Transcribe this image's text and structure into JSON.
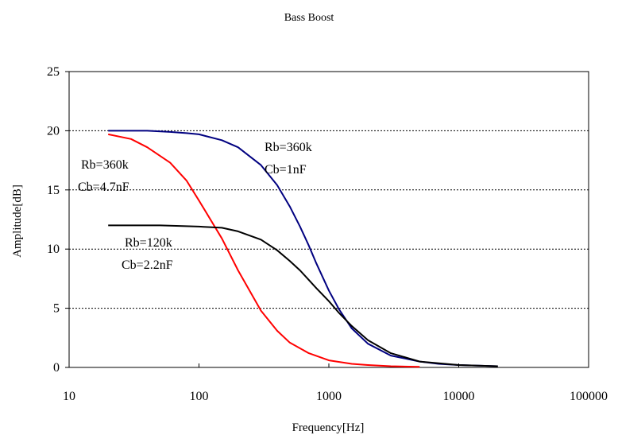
{
  "chart_data": {
    "type": "line",
    "title": "Bass Boost",
    "xlabel": "Frequency[Hz]",
    "ylabel": "Amplitude[dB]",
    "xscale": "log",
    "xlim": [
      10,
      100000
    ],
    "ylim": [
      0,
      25
    ],
    "x_ticks": [
      10,
      100,
      1000,
      10000,
      100000
    ],
    "x_tick_labels": [
      "10",
      "100",
      "1000",
      "10000",
      "100000"
    ],
    "y_ticks": [
      0,
      5,
      10,
      15,
      20,
      25
    ],
    "y_tick_labels": [
      "0",
      "5",
      "10",
      "15",
      "20",
      "25"
    ],
    "grid": "horizontal",
    "legend": "none",
    "series": [
      {
        "color": "#000080",
        "x": [
          20,
          40,
          60,
          80,
          100,
          150,
          200,
          300,
          400,
          500,
          600,
          700,
          800,
          1000,
          1200,
          1500,
          2000,
          3000,
          5000,
          7000,
          10000,
          20000
        ],
        "y": [
          20,
          20,
          19.9,
          19.8,
          19.7,
          19.2,
          18.6,
          17.1,
          15.4,
          13.6,
          11.9,
          10.3,
          8.8,
          6.5,
          4.9,
          3.3,
          2.0,
          1.0,
          0.5,
          0.3,
          0.2,
          0.1
        ]
      },
      {
        "color": "#ff0000",
        "x": [
          20,
          30,
          40,
          60,
          80,
          100,
          150,
          200,
          300,
          400,
          500,
          700,
          1000,
          1500,
          2000,
          3000,
          5000
        ],
        "y": [
          19.7,
          19.3,
          18.6,
          17.3,
          15.8,
          14.1,
          10.9,
          8.2,
          4.8,
          3.1,
          2.1,
          1.2,
          0.6,
          0.3,
          0.2,
          0.1,
          0.05
        ]
      },
      {
        "color": "#000000",
        "x": [
          20,
          50,
          100,
          150,
          200,
          300,
          400,
          500,
          600,
          700,
          800,
          1000,
          1200,
          1500,
          2000,
          3000,
          5000,
          10000,
          20000
        ],
        "y": [
          12,
          12,
          11.9,
          11.8,
          11.5,
          10.8,
          9.9,
          9.0,
          8.2,
          7.4,
          6.7,
          5.6,
          4.6,
          3.5,
          2.3,
          1.2,
          0.5,
          0.2,
          0.1
        ]
      }
    ],
    "annotations": [
      {
        "lines": [
          "Rb=360k",
          "Cb=1nF"
        ]
      },
      {
        "lines": [
          "Rb=360k",
          "Cb=4.7nF"
        ]
      },
      {
        "lines": [
          "Rb=120k",
          "Cb=2.2nF"
        ]
      }
    ]
  }
}
